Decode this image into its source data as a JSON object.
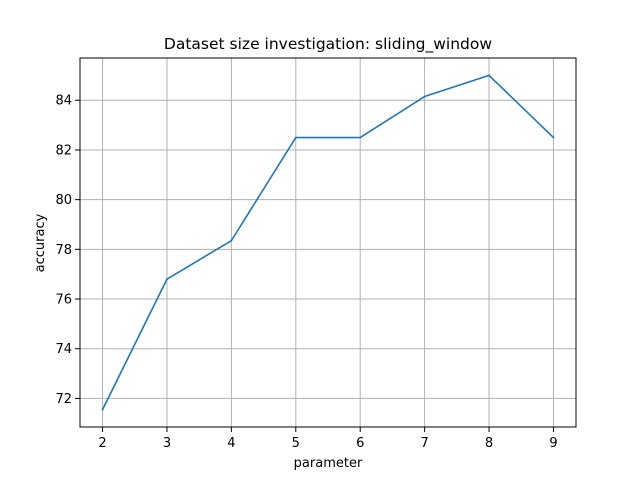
{
  "chart_data": {
    "type": "line",
    "title": "Dataset size investigation: sliding_window",
    "xlabel": "parameter",
    "ylabel": "accuracy",
    "x": [
      2,
      3,
      4,
      5,
      6,
      7,
      8,
      9
    ],
    "series": [
      {
        "values": [
          71.55,
          76.8,
          78.35,
          82.5,
          82.5,
          84.15,
          85.0,
          82.5
        ],
        "color": "#1f77b4"
      }
    ],
    "xlim": [
      1.65,
      9.35
    ],
    "ylim": [
      70.85,
      85.7
    ],
    "xticks": [
      2,
      3,
      4,
      5,
      6,
      7,
      8,
      9
    ],
    "yticks": [
      72,
      74,
      76,
      78,
      80,
      82,
      84
    ],
    "grid": true,
    "grid_color": "#b0b0b0"
  }
}
